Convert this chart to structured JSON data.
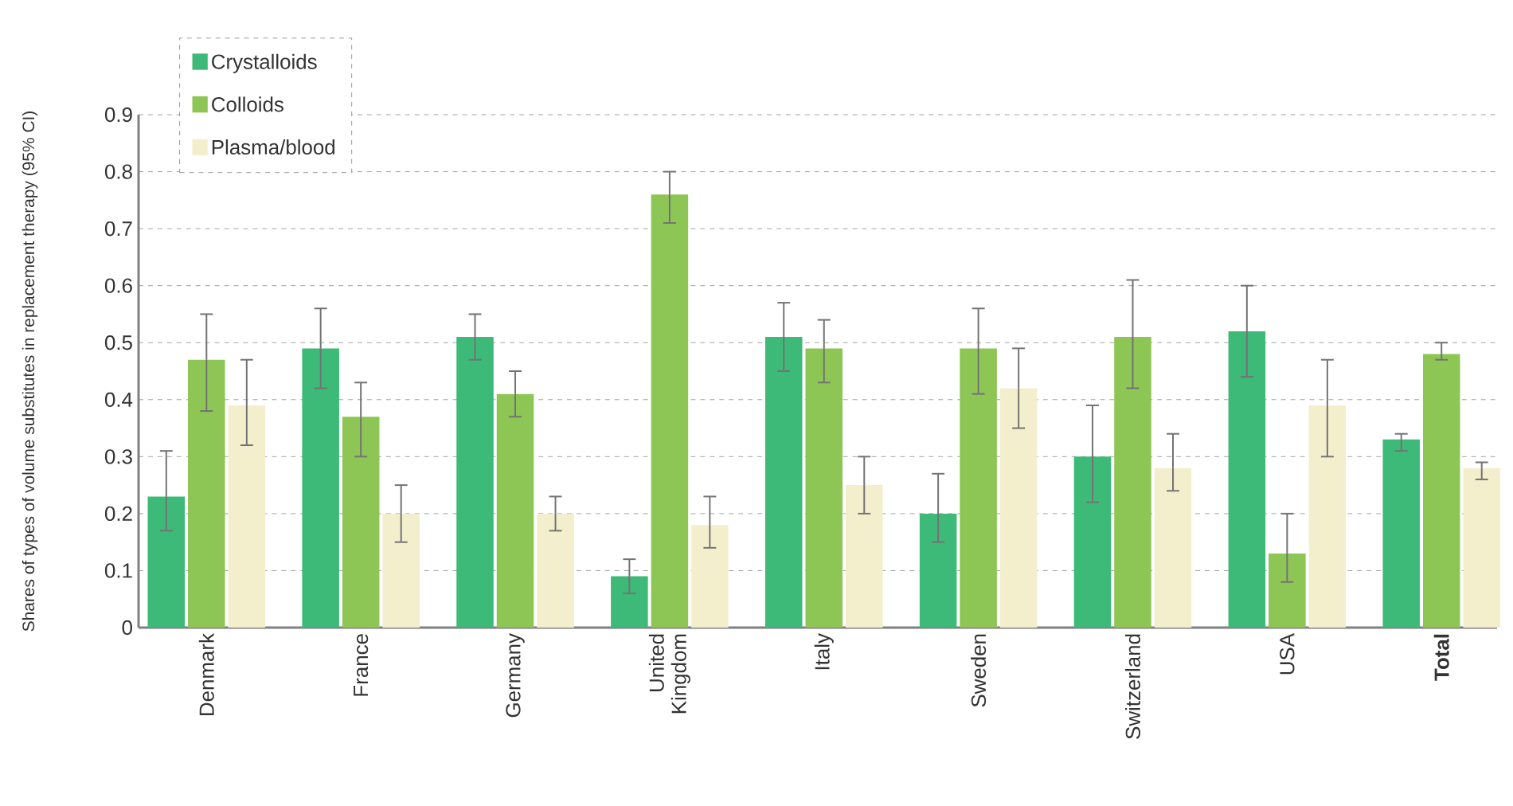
{
  "chart_data": {
    "type": "bar",
    "ylabel": "Shares of types of volume substitutes in replacement therapy (95% CI)",
    "categories": [
      "Denmark",
      "France",
      "Germany",
      "United Kingdom",
      "Italy",
      "Sweden",
      "Switzerland",
      "USA",
      "**Total**"
    ],
    "series": [
      {
        "name": "Crystalloids",
        "color": "#3dba78",
        "values": [
          0.23,
          0.49,
          0.51,
          0.09,
          0.51,
          0.2,
          0.3,
          0.52,
          0.33
        ],
        "errors": [
          [
            0.17,
            0.31
          ],
          [
            0.42,
            0.56
          ],
          [
            0.47,
            0.55
          ],
          [
            0.06,
            0.12
          ],
          [
            0.45,
            0.57
          ],
          [
            0.15,
            0.27
          ],
          [
            0.22,
            0.39
          ],
          [
            0.44,
            0.6
          ],
          [
            0.31,
            0.34
          ]
        ]
      },
      {
        "name": "Colloids",
        "color": "#8dc655",
        "values": [
          0.47,
          0.37,
          0.41,
          0.76,
          0.49,
          0.49,
          0.51,
          0.13,
          0.48
        ],
        "errors": [
          [
            0.38,
            0.55
          ],
          [
            0.3,
            0.43
          ],
          [
            0.37,
            0.45
          ],
          [
            0.71,
            0.8
          ],
          [
            0.43,
            0.54
          ],
          [
            0.41,
            0.56
          ],
          [
            0.42,
            0.61
          ],
          [
            0.08,
            0.2
          ],
          [
            0.47,
            0.5
          ]
        ]
      },
      {
        "name": "Plasma/blood",
        "color": "#f3efcd",
        "values": [
          0.39,
          0.2,
          0.2,
          0.18,
          0.25,
          0.42,
          0.28,
          0.39,
          0.28
        ],
        "errors": [
          [
            0.32,
            0.47
          ],
          [
            0.15,
            0.25
          ],
          [
            0.17,
            0.23
          ],
          [
            0.14,
            0.23
          ],
          [
            0.2,
            0.3
          ],
          [
            0.35,
            0.49
          ],
          [
            0.24,
            0.34
          ],
          [
            0.3,
            0.47
          ],
          [
            0.26,
            0.29
          ]
        ]
      }
    ],
    "ylim": [
      0,
      0.9
    ],
    "yticks": [
      0,
      0.1,
      0.2,
      0.3,
      0.4,
      0.5,
      0.6,
      0.7,
      0.8,
      0.9
    ],
    "grid": "y",
    "legend": "top left"
  }
}
